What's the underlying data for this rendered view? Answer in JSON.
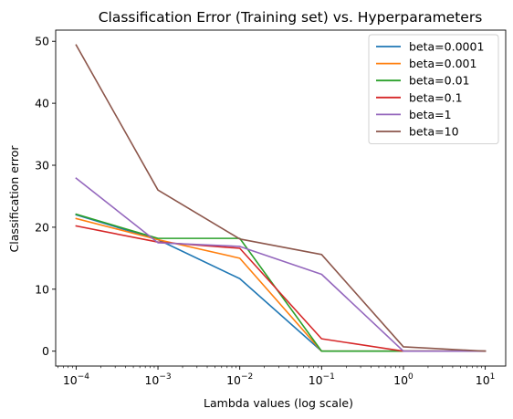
{
  "chart_data": {
    "type": "line",
    "title": "Classification Error (Training set) vs. Hyperparameters",
    "xlabel": "Lambda values (log scale)",
    "ylabel": "Classification error",
    "x_scale": "log",
    "x": [
      0.0001,
      0.001,
      0.01,
      0.1,
      1,
      10
    ],
    "x_tick_labels": [
      {
        "base": "10",
        "exp": "−4"
      },
      {
        "base": "10",
        "exp": "−3"
      },
      {
        "base": "10",
        "exp": "−2"
      },
      {
        "base": "10",
        "exp": "−1"
      },
      {
        "base": "10",
        "exp": "0"
      },
      {
        "base": "10",
        "exp": "1"
      }
    ],
    "y_ticks": [
      "0",
      "10",
      "20",
      "30",
      "40",
      "50"
    ],
    "y_tick_values": [
      0,
      10,
      20,
      30,
      40,
      50
    ],
    "ylim": [
      -2.4,
      51.8
    ],
    "grid": false,
    "legend_position": "top-right",
    "series": [
      {
        "name": "beta=0.0001",
        "color": "#1f77b4",
        "values": [
          22.0,
          18.0,
          11.7,
          0.0,
          0.0,
          0.0
        ]
      },
      {
        "name": "beta=0.001",
        "color": "#ff7f0e",
        "values": [
          21.4,
          18.0,
          15.0,
          0.0,
          0.0,
          0.0
        ]
      },
      {
        "name": "beta=0.01",
        "color": "#2ca02c",
        "values": [
          22.1,
          18.2,
          18.2,
          0.0,
          0.0,
          0.0
        ]
      },
      {
        "name": "beta=0.1",
        "color": "#d62728",
        "values": [
          20.2,
          17.6,
          16.6,
          2.0,
          0.0,
          0.0
        ]
      },
      {
        "name": "beta=1",
        "color": "#9467bd",
        "values": [
          27.9,
          17.5,
          16.9,
          12.4,
          0.0,
          0.0
        ]
      },
      {
        "name": "beta=10",
        "color": "#8c564b",
        "values": [
          49.4,
          26.0,
          18.1,
          15.6,
          0.7,
          0.0
        ]
      }
    ]
  }
}
